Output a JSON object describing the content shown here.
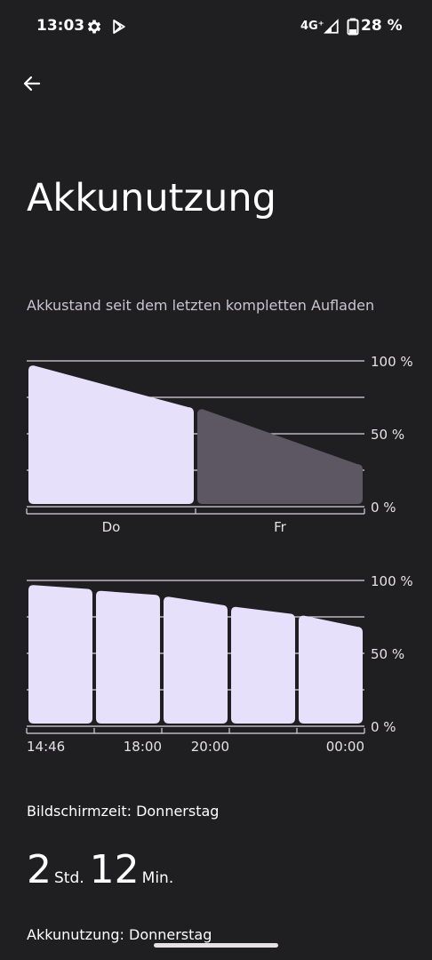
{
  "status_bar": {
    "time": "13:03",
    "network": "4G⁺",
    "battery_percent": "28 %",
    "icons": [
      "gear-icon",
      "play-store-icon",
      "signal-icon",
      "battery-icon"
    ]
  },
  "header": {
    "back_icon": "arrow-left-icon",
    "title": "Akkunutzung"
  },
  "chart_caption": "Akkustand seit dem letzten kompletten Aufladen",
  "colors": {
    "background": "#1f1f22",
    "bar_active": "#e7e0fb",
    "bar_inactive": "#5c5762",
    "gridline": "#d9d4dc",
    "text": "#e6e1e5"
  },
  "chart_data": [
    {
      "type": "area",
      "ylim": [
        0,
        100
      ],
      "y_ticks": [
        "100 %",
        "50 %",
        "0 %"
      ],
      "grid": true,
      "categories": [
        "Do",
        "Fr"
      ],
      "series": [
        {
          "values": [
            [
              0,
              97
            ],
            [
              1,
              68
            ]
          ],
          "state": "active"
        },
        {
          "values": [
            [
              0,
              67
            ],
            [
              1,
              29
            ]
          ],
          "state": "inactive"
        }
      ]
    },
    {
      "type": "area",
      "ylim": [
        0,
        100
      ],
      "y_ticks": [
        "100 %",
        "50 %",
        "0 %"
      ],
      "grid": true,
      "x_tick_labels": [
        "14:46",
        "18:00",
        "20:00",
        "00:00"
      ],
      "segments": [
        {
          "start": 97,
          "end": 94
        },
        {
          "start": 93,
          "end": 90
        },
        {
          "start": 89,
          "end": 83
        },
        {
          "start": 82,
          "end": 77
        },
        {
          "start": 76,
          "end": 68
        }
      ]
    }
  ],
  "screen_time": {
    "label": "Bildschirmzeit: Donnerstag",
    "hours": "2",
    "hours_unit": "Std.",
    "minutes": "12",
    "minutes_unit": "Min."
  },
  "usage_label": "Akkunutzung: Donnerstag"
}
